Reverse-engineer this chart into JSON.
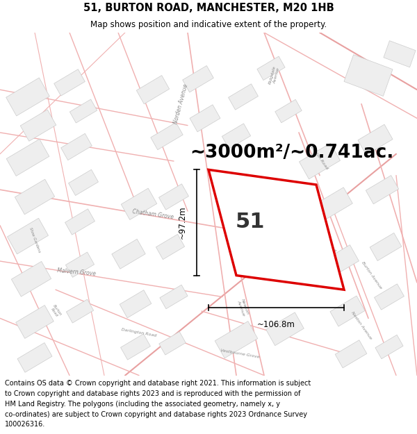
{
  "title": "51, BURTON ROAD, MANCHESTER, M20 1HB",
  "subtitle": "Map shows position and indicative extent of the property.",
  "area_text": "~3000m²/~0.741ac.",
  "label": "51",
  "dim_horiz": "~106.8m",
  "dim_vert": "~97.2m",
  "footer_lines": [
    "Contains OS data © Crown copyright and database right 2021. This information is subject",
    "to Crown copyright and database rights 2023 and is reproduced with the permission of",
    "HM Land Registry. The polygons (including the associated geometry, namely x, y",
    "co-ordinates) are subject to Crown copyright and database rights 2023 Ordnance Survey",
    "100026316."
  ],
  "bg_color": "#ffffff",
  "map_bg": "#ffffff",
  "street_color": "#f0b0b0",
  "building_edge": "#cccccc",
  "building_fill": "#eeeeee",
  "road_label_color": "#888888",
  "property_fill": "#ffffff",
  "property_edge": "#dd0000",
  "title_fontsize": 10.5,
  "subtitle_fontsize": 8.5,
  "area_fontsize": 19,
  "label_fontsize": 22,
  "footer_fontsize": 7.0,
  "dim_fontsize": 8.5,
  "street_label_fontsize": 5.5
}
